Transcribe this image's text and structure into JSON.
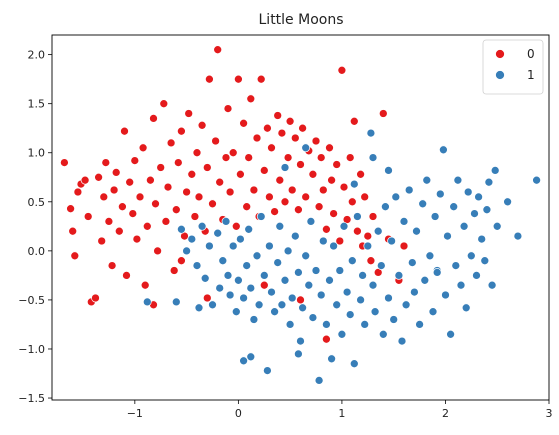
{
  "chart_data": {
    "type": "scatter",
    "title": "Little Moons",
    "xlabel": "",
    "ylabel": "",
    "xlim": [
      -1.8,
      3.0
    ],
    "ylim": [
      -1.52,
      2.2
    ],
    "xticks": [
      -1,
      0,
      1,
      2,
      3
    ],
    "xtick_labels": [
      "−1",
      "0",
      "1",
      "2",
      "3"
    ],
    "yticks": [
      -1.5,
      -1.0,
      -0.5,
      0.0,
      0.5,
      1.0,
      1.5,
      2.0
    ],
    "ytick_labels": [
      "−1.5",
      "−1.0",
      "−0.5",
      "0.0",
      "0.5",
      "1.0",
      "1.5",
      "2.0"
    ],
    "grid": false,
    "legend_position": "top-right",
    "series": [
      {
        "name": "0",
        "color": "#e41a1c",
        "points": [
          [
            -1.68,
            0.9
          ],
          [
            -1.62,
            0.43
          ],
          [
            -1.6,
            0.2
          ],
          [
            -1.58,
            -0.05
          ],
          [
            -1.55,
            0.6
          ],
          [
            -1.52,
            0.68
          ],
          [
            -1.48,
            0.72
          ],
          [
            -1.45,
            0.35
          ],
          [
            -1.42,
            -0.52
          ],
          [
            -1.38,
            -0.48
          ],
          [
            -1.35,
            0.75
          ],
          [
            -1.32,
            0.1
          ],
          [
            -1.3,
            0.55
          ],
          [
            -1.28,
            0.9
          ],
          [
            -1.25,
            0.3
          ],
          [
            -1.22,
            -0.15
          ],
          [
            -1.2,
            0.62
          ],
          [
            -1.18,
            0.8
          ],
          [
            -1.15,
            0.2
          ],
          [
            -1.12,
            0.45
          ],
          [
            -1.1,
            1.22
          ],
          [
            -1.08,
            -0.25
          ],
          [
            -1.05,
            0.7
          ],
          [
            -1.02,
            0.38
          ],
          [
            -1.0,
            0.92
          ],
          [
            -0.98,
            0.12
          ],
          [
            -0.95,
            0.55
          ],
          [
            -0.92,
            1.05
          ],
          [
            -0.9,
            -0.35
          ],
          [
            -0.88,
            0.25
          ],
          [
            -0.85,
            0.72
          ],
          [
            -0.82,
            1.35
          ],
          [
            -0.8,
            0.48
          ],
          [
            -0.78,
            0.0
          ],
          [
            -0.75,
            0.85
          ],
          [
            -0.72,
            1.5
          ],
          [
            -0.7,
            0.3
          ],
          [
            -0.68,
            0.65
          ],
          [
            -0.65,
            1.1
          ],
          [
            -0.62,
            -0.2
          ],
          [
            -0.6,
            0.42
          ],
          [
            -0.58,
            0.9
          ],
          [
            -0.55,
            1.22
          ],
          [
            -0.52,
            0.15
          ],
          [
            -0.5,
            0.6
          ],
          [
            -0.48,
            1.4
          ],
          [
            -0.45,
            0.78
          ],
          [
            -0.42,
            0.35
          ],
          [
            -0.4,
            1.0
          ],
          [
            -0.38,
            0.55
          ],
          [
            -0.35,
            1.28
          ],
          [
            -0.32,
            0.2
          ],
          [
            -0.3,
            0.85
          ],
          [
            -0.28,
            1.75
          ],
          [
            -0.25,
            0.48
          ],
          [
            -0.22,
            1.12
          ],
          [
            -0.2,
            2.05
          ],
          [
            -0.18,
            0.7
          ],
          [
            -0.15,
            0.32
          ],
          [
            -0.12,
            0.95
          ],
          [
            -0.1,
            1.45
          ],
          [
            -0.08,
            0.6
          ],
          [
            -0.05,
            1.0
          ],
          [
            -0.02,
            0.25
          ],
          [
            0.0,
            1.75
          ],
          [
            0.02,
            0.78
          ],
          [
            0.05,
            1.3
          ],
          [
            0.08,
            0.45
          ],
          [
            0.1,
            0.95
          ],
          [
            0.12,
            1.55
          ],
          [
            0.15,
            0.62
          ],
          [
            0.18,
            1.15
          ],
          [
            0.2,
            0.35
          ],
          [
            0.22,
            1.75
          ],
          [
            0.25,
            0.82
          ],
          [
            0.28,
            1.25
          ],
          [
            0.3,
            0.55
          ],
          [
            0.32,
            1.05
          ],
          [
            0.35,
            0.4
          ],
          [
            0.38,
            1.38
          ],
          [
            0.4,
            0.72
          ],
          [
            0.42,
            1.2
          ],
          [
            0.45,
            0.5
          ],
          [
            0.48,
            0.95
          ],
          [
            0.5,
            1.32
          ],
          [
            0.52,
            0.62
          ],
          [
            0.55,
            1.15
          ],
          [
            0.58,
            0.42
          ],
          [
            0.6,
            0.88
          ],
          [
            0.62,
            1.25
          ],
          [
            0.65,
            0.55
          ],
          [
            0.68,
            1.02
          ],
          [
            0.7,
            0.3
          ],
          [
            0.72,
            0.78
          ],
          [
            0.75,
            1.12
          ],
          [
            0.78,
            0.45
          ],
          [
            0.8,
            0.95
          ],
          [
            0.82,
            0.62
          ],
          [
            0.85,
            0.22
          ],
          [
            0.88,
            1.05
          ],
          [
            0.9,
            0.72
          ],
          [
            0.92,
            0.38
          ],
          [
            0.95,
            0.88
          ],
          [
            0.98,
            0.1
          ],
          [
            1.0,
            1.84
          ],
          [
            1.02,
            0.65
          ],
          [
            1.05,
            0.32
          ],
          [
            1.08,
            0.95
          ],
          [
            1.1,
            0.5
          ],
          [
            1.12,
            1.32
          ],
          [
            1.15,
            0.2
          ],
          [
            1.18,
            0.78
          ],
          [
            1.2,
            0.05
          ],
          [
            1.22,
            0.55
          ],
          [
            1.25,
            0.15
          ],
          [
            1.28,
            -0.1
          ],
          [
            1.3,
            0.35
          ],
          [
            1.35,
            -0.22
          ],
          [
            1.4,
            1.4
          ],
          [
            1.45,
            0.12
          ],
          [
            0.85,
            -0.9
          ],
          [
            0.6,
            -0.5
          ],
          [
            0.25,
            -0.35
          ],
          [
            -0.3,
            -0.48
          ],
          [
            -0.55,
            -0.1
          ],
          [
            -0.82,
            -0.55
          ],
          [
            1.6,
            0.05
          ],
          [
            1.55,
            -0.3
          ]
        ]
      },
      {
        "name": "1",
        "color": "#377eb8",
        "points": [
          [
            -0.88,
            -0.52
          ],
          [
            -0.6,
            -0.52
          ],
          [
            -0.5,
            0.0
          ],
          [
            -0.45,
            0.12
          ],
          [
            -0.4,
            -0.15
          ],
          [
            -0.35,
            0.25
          ],
          [
            -0.32,
            -0.28
          ],
          [
            -0.28,
            0.05
          ],
          [
            -0.25,
            -0.55
          ],
          [
            -0.2,
            0.18
          ],
          [
            -0.18,
            -0.38
          ],
          [
            -0.15,
            -0.1
          ],
          [
            -0.12,
            0.3
          ],
          [
            -0.1,
            -0.25
          ],
          [
            -0.08,
            -0.45
          ],
          [
            -0.05,
            0.05
          ],
          [
            -0.02,
            -0.62
          ],
          [
            0.0,
            -0.3
          ],
          [
            0.02,
            0.12
          ],
          [
            0.05,
            -0.48
          ],
          [
            0.08,
            -0.15
          ],
          [
            0.1,
            0.22
          ],
          [
            0.12,
            -0.38
          ],
          [
            0.15,
            -0.7
          ],
          [
            0.18,
            -0.05
          ],
          [
            0.2,
            -0.55
          ],
          [
            0.22,
            0.35
          ],
          [
            0.25,
            -0.25
          ],
          [
            0.28,
            -1.22
          ],
          [
            0.3,
            0.05
          ],
          [
            0.32,
            -0.42
          ],
          [
            0.35,
            -0.62
          ],
          [
            0.38,
            -0.12
          ],
          [
            0.4,
            0.25
          ],
          [
            0.42,
            -0.55
          ],
          [
            0.45,
            -0.3
          ],
          [
            0.48,
            0.0
          ],
          [
            0.5,
            -0.75
          ],
          [
            0.52,
            -0.48
          ],
          [
            0.55,
            0.15
          ],
          [
            0.58,
            -0.22
          ],
          [
            0.6,
            -0.92
          ],
          [
            0.62,
            -0.58
          ],
          [
            0.65,
            -0.05
          ],
          [
            0.68,
            -0.35
          ],
          [
            0.7,
            0.3
          ],
          [
            0.72,
            -0.68
          ],
          [
            0.75,
            -0.2
          ],
          [
            0.78,
            -1.32
          ],
          [
            0.8,
            -0.45
          ],
          [
            0.82,
            0.1
          ],
          [
            0.85,
            -0.75
          ],
          [
            0.88,
            -0.3
          ],
          [
            0.9,
            -1.1
          ],
          [
            0.92,
            0.05
          ],
          [
            0.95,
            -0.55
          ],
          [
            0.98,
            -0.2
          ],
          [
            1.0,
            -0.85
          ],
          [
            1.02,
            0.25
          ],
          [
            1.05,
            -0.42
          ],
          [
            1.08,
            -0.65
          ],
          [
            1.1,
            -0.1
          ],
          [
            1.12,
            -1.15
          ],
          [
            1.15,
            0.35
          ],
          [
            1.18,
            -0.5
          ],
          [
            1.2,
            -0.25
          ],
          [
            1.22,
            -0.75
          ],
          [
            1.25,
            0.05
          ],
          [
            1.28,
            1.2
          ],
          [
            1.3,
            -0.35
          ],
          [
            1.32,
            -0.62
          ],
          [
            1.35,
            0.2
          ],
          [
            1.38,
            -0.15
          ],
          [
            1.4,
            -0.85
          ],
          [
            1.42,
            0.45
          ],
          [
            1.45,
            -0.48
          ],
          [
            1.48,
            0.1
          ],
          [
            1.5,
            -0.7
          ],
          [
            1.52,
            0.55
          ],
          [
            1.55,
            -0.25
          ],
          [
            1.58,
            -0.92
          ],
          [
            1.6,
            0.3
          ],
          [
            1.62,
            -0.55
          ],
          [
            1.65,
            0.62
          ],
          [
            1.68,
            -0.12
          ],
          [
            1.7,
            -0.42
          ],
          [
            1.72,
            0.2
          ],
          [
            1.75,
            -0.75
          ],
          [
            1.78,
            0.48
          ],
          [
            1.8,
            -0.3
          ],
          [
            1.82,
            0.72
          ],
          [
            1.85,
            -0.05
          ],
          [
            1.88,
            -0.62
          ],
          [
            1.9,
            0.35
          ],
          [
            1.92,
            -0.2
          ],
          [
            1.95,
            0.58
          ],
          [
            1.98,
            1.03
          ],
          [
            2.0,
            -0.45
          ],
          [
            2.02,
            0.15
          ],
          [
            2.05,
            -0.85
          ],
          [
            2.08,
            0.45
          ],
          [
            2.1,
            -0.15
          ],
          [
            2.12,
            0.72
          ],
          [
            2.15,
            -0.35
          ],
          [
            2.18,
            0.25
          ],
          [
            2.2,
            -0.58
          ],
          [
            2.22,
            0.6
          ],
          [
            2.25,
            -0.05
          ],
          [
            2.28,
            0.38
          ],
          [
            2.3,
            -0.25
          ],
          [
            2.32,
            0.55
          ],
          [
            2.35,
            0.12
          ],
          [
            2.38,
            -0.1
          ],
          [
            2.4,
            0.42
          ],
          [
            2.42,
            0.7
          ],
          [
            2.45,
            -0.35
          ],
          [
            2.48,
            0.82
          ],
          [
            2.5,
            0.25
          ],
          [
            2.6,
            0.5
          ],
          [
            2.7,
            0.15
          ],
          [
            2.88,
            0.72
          ],
          [
            1.3,
            0.95
          ],
          [
            1.12,
            0.68
          ],
          [
            1.45,
            0.82
          ],
          [
            0.45,
            0.85
          ],
          [
            0.65,
            1.05
          ],
          [
            -0.55,
            0.22
          ],
          [
            -0.38,
            -0.58
          ],
          [
            0.05,
            -1.12
          ],
          [
            0.12,
            -1.08
          ],
          [
            0.58,
            -1.05
          ],
          [
            1.92,
            -0.22
          ]
        ]
      }
    ]
  }
}
